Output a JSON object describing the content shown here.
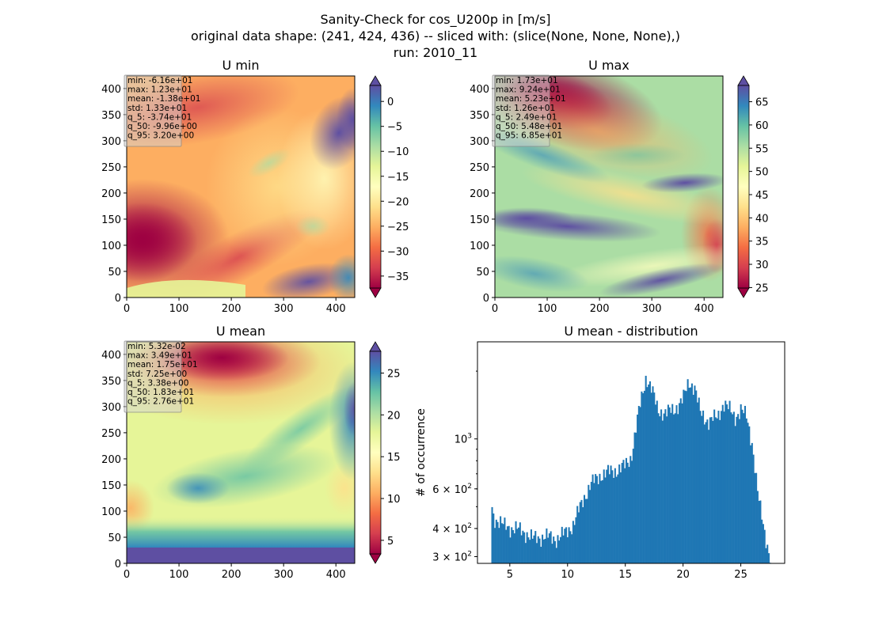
{
  "figure": {
    "title_lines": [
      "Sanity-Check for cos_U200p in [m/s]",
      "original data shape: (241, 424, 436) -- sliced with: (slice(None, None, None),)",
      "run: 2010_11"
    ]
  },
  "colors": {
    "hist_bar": "#1f77b4",
    "stats_box": "#d3d3d3",
    "colormap": "Spectral",
    "cmap_stops": [
      "#9e0142",
      "#d53e4f",
      "#f46d43",
      "#fdae61",
      "#fee08b",
      "#ffffbf",
      "#e6f598",
      "#abdda4",
      "#66c2a5",
      "#3288bd",
      "#5e4fa2"
    ]
  },
  "panels": {
    "umin": {
      "title": "U min",
      "stats": [
        "min: -6.16e+01",
        "max: 1.23e+01",
        "mean: -1.38e+01",
        "std: 1.33e+01",
        "q_5: -3.74e+01",
        "q_50: -9.96e+00",
        "q_95: 3.20e+00"
      ],
      "x_ticks": [
        "0",
        "100",
        "200",
        "300",
        "400"
      ],
      "y_ticks": [
        "0",
        "50",
        "100",
        "150",
        "200",
        "250",
        "300",
        "350",
        "400"
      ],
      "colorbar": {
        "ticks": [
          "0",
          "−5",
          "−10",
          "−15",
          "−20",
          "−25",
          "−30",
          "−35"
        ],
        "range": [
          -37.4,
          3.2
        ],
        "extend": "both"
      }
    },
    "umax": {
      "title": "U max",
      "stats": [
        "min: 1.73e+01",
        "max: 9.24e+01",
        "mean: 5.23e+01",
        "std: 1.26e+01",
        "q_5: 2.49e+01",
        "q_50: 5.48e+01",
        "q_95: 6.85e+01"
      ],
      "x_ticks": [
        "0",
        "100",
        "200",
        "300",
        "400"
      ],
      "y_ticks": [
        "0",
        "50",
        "100",
        "150",
        "200",
        "250",
        "300",
        "350",
        "400"
      ],
      "colorbar": {
        "ticks": [
          "65",
          "60",
          "55",
          "50",
          "45",
          "40",
          "35",
          "30",
          "25"
        ],
        "range": [
          24.9,
          68.5
        ],
        "extend": "both"
      }
    },
    "umean": {
      "title": "U mean",
      "stats": [
        "min: 5.32e-02",
        "max: 3.49e+01",
        "mean: 1.75e+01",
        "std: 7.25e+00",
        "q_5: 3.38e+00",
        "q_50: 1.83e+01",
        "q_95: 2.76e+01"
      ],
      "x_ticks": [
        "0",
        "100",
        "200",
        "300",
        "400"
      ],
      "y_ticks": [
        "0",
        "50",
        "100",
        "150",
        "200",
        "250",
        "300",
        "350",
        "400"
      ],
      "colorbar": {
        "ticks": [
          "25",
          "20",
          "15",
          "10",
          "5"
        ],
        "range": [
          3.38,
          27.6
        ],
        "extend": "both"
      }
    },
    "hist": {
      "title": "U mean - distribution",
      "ylabel": "# of occurrence",
      "x_ticks": [
        "5",
        "10",
        "15",
        "20",
        "25"
      ],
      "y_tick_labels": [
        {
          "base": "3",
          "exp": "2"
        },
        {
          "base": "4",
          "exp": "2"
        },
        {
          "base": "6",
          "exp": "2"
        },
        {
          "plain": "10",
          "exp": "3"
        }
      ]
    }
  },
  "chart_data": [
    {
      "type": "heatmap",
      "title": "U min",
      "xlim": [
        0,
        436
      ],
      "ylim": [
        0,
        424
      ],
      "colorbar_range": [
        -37.4,
        3.2
      ],
      "colormap": "Spectral",
      "regions": [
        {
          "name": "west low band",
          "x": [
            0,
            100
          ],
          "y": [
            50,
            200
          ],
          "value": -38
        },
        {
          "name": "north-east jet",
          "x": [
            350,
            436
          ],
          "y": [
            250,
            330
          ],
          "value": 3
        },
        {
          "name": "south-east patch",
          "x": [
            280,
            436
          ],
          "y": [
            0,
            80
          ],
          "value": 3
        },
        {
          "name": "south strip",
          "x": [
            0,
            436
          ],
          "y": [
            0,
            25
          ],
          "value": 2
        }
      ]
    },
    {
      "type": "heatmap",
      "title": "U max",
      "xlim": [
        0,
        436
      ],
      "ylim": [
        0,
        424
      ],
      "colorbar_range": [
        24.9,
        68.5
      ],
      "colormap": "Spectral",
      "regions": [
        {
          "name": "north-west low",
          "x": [
            30,
            200
          ],
          "y": [
            330,
            424
          ],
          "value": 25
        },
        {
          "name": "central jet",
          "x": [
            0,
            250
          ],
          "y": [
            130,
            160
          ],
          "value": 68
        },
        {
          "name": "east jet",
          "x": [
            300,
            436
          ],
          "y": [
            200,
            230
          ],
          "value": 68
        },
        {
          "name": "south jet",
          "x": [
            250,
            436
          ],
          "y": [
            20,
            50
          ],
          "value": 68
        }
      ]
    },
    {
      "type": "heatmap",
      "title": "U mean",
      "xlim": [
        0,
        436
      ],
      "ylim": [
        0,
        424
      ],
      "colorbar_range": [
        3.38,
        27.6
      ],
      "colormap": "Spectral",
      "regions": [
        {
          "name": "north low",
          "x": [
            100,
            300
          ],
          "y": [
            320,
            424
          ],
          "value": 3
        },
        {
          "name": "south strip",
          "x": [
            0,
            436
          ],
          "y": [
            0,
            40
          ],
          "value": 27
        },
        {
          "name": "east high",
          "x": [
            380,
            436
          ],
          "y": [
            250,
            380
          ],
          "value": 26
        },
        {
          "name": "central band",
          "x": [
            100,
            350
          ],
          "y": [
            120,
            200
          ],
          "value": 22
        }
      ]
    },
    {
      "type": "bar",
      "title": "U mean - distribution",
      "ylabel": "# of occurrence",
      "yscale": "log",
      "xlim": [
        2.2,
        28.8
      ],
      "ylim": [
        280,
        2700
      ],
      "bin_range": [
        3.4,
        27.6
      ],
      "bin_count": 200,
      "profile_x": [
        3.4,
        3.6,
        4.5,
        5.5,
        6.5,
        7.0,
        8.0,
        9.0,
        9.9,
        10.5,
        11.5,
        12.0,
        13.0,
        14.0,
        15.0,
        15.5,
        16.2,
        16.8,
        17.3,
        17.8,
        18.5,
        19.2,
        20.0,
        20.5,
        21.0,
        21.5,
        22.2,
        23.0,
        23.5,
        24.0,
        24.5,
        25.0,
        25.5,
        26.0,
        26.5,
        27.0,
        27.4,
        27.6
      ],
      "profile_y": [
        520,
        450,
        410,
        400,
        380,
        360,
        370,
        360,
        385,
        420,
        560,
        630,
        700,
        720,
        760,
        830,
        1350,
        1900,
        1650,
        1350,
        1300,
        1350,
        1500,
        1800,
        1700,
        1300,
        1200,
        1250,
        1450,
        1350,
        1250,
        1350,
        1250,
        950,
        550,
        400,
        320,
        290
      ]
    }
  ]
}
